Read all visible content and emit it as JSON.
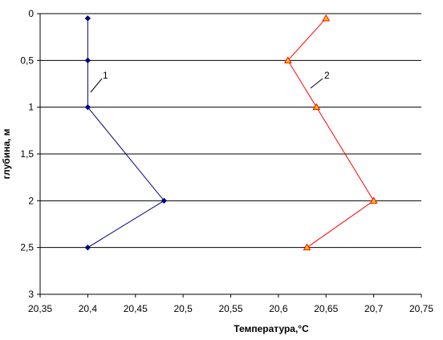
{
  "chart_data": {
    "type": "scatter",
    "x_label": "Температура,°С",
    "y_label": "глубина, м",
    "xlim": [
      20.35,
      20.75
    ],
    "xticks": [
      {
        "value": 20.35,
        "label": "20,35"
      },
      {
        "value": 20.4,
        "label": "20,4"
      },
      {
        "value": 20.45,
        "label": "20,45"
      },
      {
        "value": 20.5,
        "label": "20,5"
      },
      {
        "value": 20.55,
        "label": "20,55"
      },
      {
        "value": 20.6,
        "label": "20,6"
      },
      {
        "value": 20.65,
        "label": "20,65"
      },
      {
        "value": 20.7,
        "label": "20,7"
      },
      {
        "value": 20.75,
        "label": "20,75"
      }
    ],
    "ylim": [
      0,
      3
    ],
    "y_inverted": true,
    "yticks": [
      0,
      {
        "value": 0.5,
        "label": "0,5"
      },
      1,
      {
        "value": 1.5,
        "label": "1,5"
      },
      2,
      {
        "value": 2.5,
        "label": "2,5"
      },
      3
    ],
    "grid": true,
    "series": [
      {
        "name": "1",
        "color": "#000080",
        "marker": "diamond",
        "marker_fill": "#000080",
        "x": [
          20.4,
          20.4,
          20.4,
          20.48,
          20.4
        ],
        "values": [
          0.05,
          0.5,
          1,
          2,
          2.5
        ]
      },
      {
        "name": "2",
        "color": "#ff0000",
        "marker": "triangle",
        "marker_fill": "#ffcc00",
        "x": [
          20.65,
          20.61,
          20.64,
          20.7,
          20.63
        ],
        "values": [
          0.05,
          0.5,
          1,
          2,
          2.5
        ]
      }
    ]
  }
}
